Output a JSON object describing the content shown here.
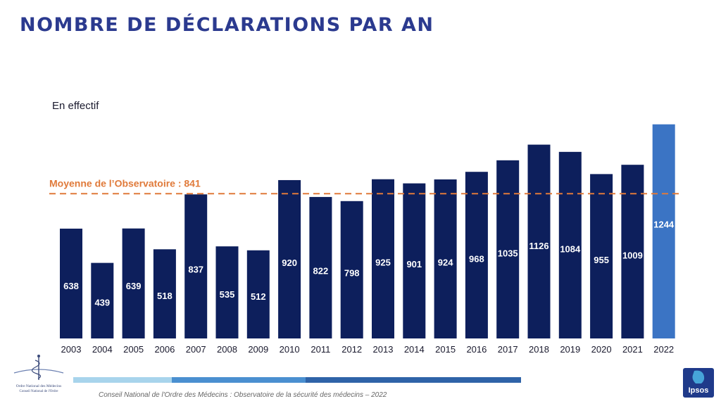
{
  "page": {
    "title": "NOMBRE DE DÉCLARATIONS PAR AN",
    "subtitle": "En effectif",
    "footer": "Conseil National de l'Ordre des Médecins : Observatoire de la sécurité des médecins – 2022"
  },
  "logos": {
    "left_line1": "Ordre National des Médecins",
    "left_line2": "Conseil National de l'Ordre",
    "right": "Ipsos"
  },
  "colors": {
    "title": "#2b3a8f",
    "bar": "#0d1f5c",
    "bar_highlight": "#3b74c4",
    "average_line": "#e07a3a"
  },
  "chart_data": {
    "type": "bar",
    "categories": [
      "2003",
      "2004",
      "2005",
      "2006",
      "2007",
      "2008",
      "2009",
      "2010",
      "2011",
      "2012",
      "2013",
      "2014",
      "2015",
      "2016",
      "2017",
      "2018",
      "2019",
      "2020",
      "2021",
      "2022"
    ],
    "values": [
      638,
      439,
      639,
      518,
      837,
      535,
      512,
      920,
      822,
      798,
      925,
      901,
      924,
      968,
      1035,
      1126,
      1084,
      955,
      1009,
      1244
    ],
    "highlight_category": "2022",
    "reference_line": {
      "value": 841,
      "label": "Moyenne de l’Observatoire : 841"
    },
    "ylim": [
      0,
      1300
    ],
    "grid": false,
    "legend": "none"
  }
}
